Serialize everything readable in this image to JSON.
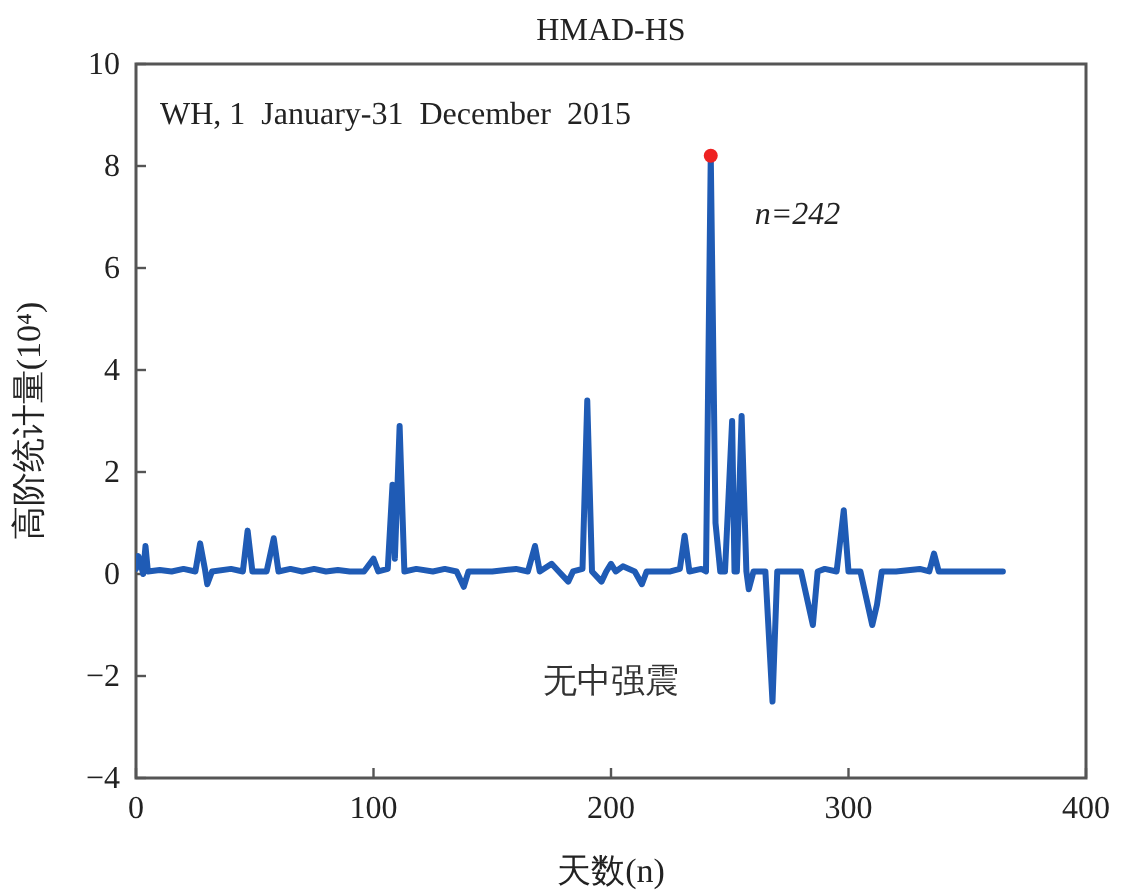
{
  "chart_data": {
    "type": "line",
    "title": "HMAD-HS",
    "xlabel": "天数(n)",
    "ylabel": "高阶统计量(10⁴)",
    "xlim": [
      0,
      400
    ],
    "xticks": [
      0,
      100,
      200,
      300,
      400
    ],
    "ylim": [
      -4,
      10
    ],
    "yticks": [
      -4,
      -2,
      0,
      2,
      4,
      6,
      8,
      10
    ],
    "annotations": [
      "WH, 1  January-31  December  2015",
      "无中强震",
      {
        "text": "n=242",
        "x": 242,
        "y": 8.2
      }
    ],
    "series": [
      {
        "color": "#1f5bb5",
        "x": [
          0,
          1,
          2,
          3,
          4,
          5,
          10,
          15,
          20,
          25,
          27,
          29,
          30,
          32,
          40,
          45,
          47,
          49,
          55,
          58,
          60,
          65,
          70,
          75,
          80,
          85,
          90,
          96,
          100,
          102,
          106,
          108,
          109,
          111,
          113,
          118,
          125,
          130,
          135,
          138,
          140,
          150,
          160,
          165,
          168,
          170,
          175,
          178,
          182,
          184,
          188,
          190,
          192,
          196,
          198,
          200,
          202,
          205,
          210,
          213,
          215,
          225,
          229,
          231,
          233,
          238,
          240,
          242,
          244,
          246,
          248,
          251,
          252,
          253,
          255,
          257,
          258,
          260,
          265,
          268,
          270,
          280,
          285,
          287,
          290,
          295,
          298,
          300,
          305,
          310,
          312,
          314,
          320,
          330,
          334,
          336,
          338,
          350,
          365
        ],
        "values": [
          0.1,
          0.35,
          0.2,
          0.0,
          0.55,
          0.05,
          0.08,
          0.05,
          0.1,
          0.05,
          0.6,
          0.1,
          -0.2,
          0.05,
          0.1,
          0.05,
          0.85,
          0.05,
          0.05,
          0.7,
          0.05,
          0.1,
          0.05,
          0.1,
          0.05,
          0.08,
          0.05,
          0.05,
          0.3,
          0.05,
          0.1,
          1.75,
          0.3,
          2.9,
          0.05,
          0.1,
          0.05,
          0.1,
          0.05,
          -0.25,
          0.05,
          0.05,
          0.1,
          0.05,
          0.55,
          0.05,
          0.2,
          0.05,
          -0.15,
          0.05,
          0.1,
          3.4,
          0.05,
          -0.15,
          0.05,
          0.2,
          0.05,
          0.15,
          0.05,
          -0.2,
          0.05,
          0.05,
          0.1,
          0.75,
          0.05,
          0.1,
          0.05,
          8.2,
          1.0,
          0.05,
          0.05,
          3.0,
          0.05,
          0.05,
          3.1,
          0.05,
          -0.3,
          0.05,
          0.05,
          -2.5,
          0.05,
          0.05,
          -1.0,
          0.05,
          0.1,
          0.05,
          1.25,
          0.05,
          0.05,
          -1.0,
          -0.6,
          0.05,
          0.05,
          0.1,
          0.05,
          0.4,
          0.05,
          0.05,
          0.05
        ]
      },
      {
        "type": "scatter",
        "color": "#ee2222",
        "x": [
          242
        ],
        "values": [
          8.2
        ]
      }
    ]
  }
}
